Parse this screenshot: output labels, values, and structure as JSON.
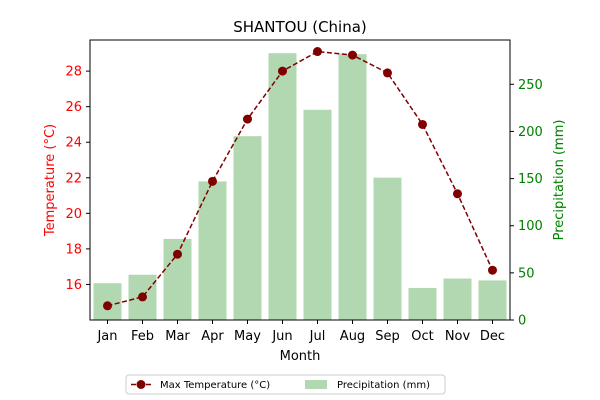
{
  "chart_data": {
    "type": "bar+line",
    "title": "SHANTOU (China)",
    "xlabel": "Month",
    "categories": [
      "Jan",
      "Feb",
      "Mar",
      "Apr",
      "May",
      "Jun",
      "Jul",
      "Aug",
      "Sep",
      "Oct",
      "Nov",
      "Dec"
    ],
    "y_left": {
      "label": "Temperature (°C)",
      "color": "#ff0000",
      "ylim": [
        14.0,
        29.75
      ],
      "ticks": [
        16,
        18,
        20,
        22,
        24,
        26,
        28
      ]
    },
    "y_right": {
      "label": "Precipitation (mm)",
      "color": "#008000",
      "ylim": [
        0,
        297
      ],
      "ticks": [
        0,
        50,
        100,
        150,
        200,
        250
      ]
    },
    "series": [
      {
        "name": "Max Temperature (°C)",
        "kind": "line",
        "axis": "left",
        "color": "#800000",
        "values": [
          14.8,
          15.3,
          17.7,
          21.8,
          25.3,
          28.0,
          29.1,
          28.9,
          27.9,
          25.0,
          21.1,
          16.8
        ]
      },
      {
        "name": "Precipitation (mm)",
        "kind": "bar",
        "axis": "right",
        "color": "#b2d8b2",
        "values": [
          39,
          48,
          86,
          147,
          195,
          283,
          223,
          282,
          151,
          34,
          44,
          42
        ]
      }
    ]
  }
}
